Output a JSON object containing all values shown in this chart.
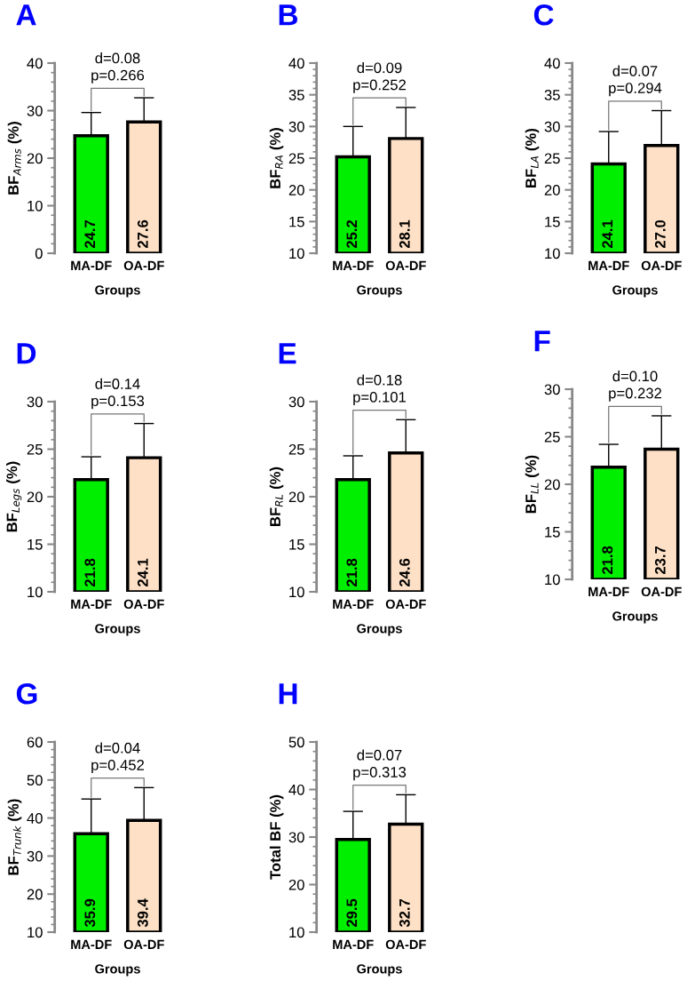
{
  "chart_data": [
    {
      "type": "bar",
      "title": "A",
      "ylabel": "BF$_{Arms}$ (%)",
      "xlabel": "Groups",
      "categories": [
        "MA-DF",
        "OA-DF"
      ],
      "values": [
        24.7,
        27.6
      ],
      "colors": [
        "#00ee00",
        "#fde0c5"
      ],
      "errors": [
        [
          24.7,
          29.6
        ],
        [
          27.6,
          32.7
        ]
      ],
      "data_labels": true,
      "annotations": [
        "d=0.08\np=0.266"
      ],
      "ylim": [
        0,
        40
      ],
      "yticks": [
        0,
        {
          "value": 2,
          "label": null
        },
        {
          "value": 4,
          "label": null
        },
        {
          "value": 6,
          "label": null
        },
        {
          "value": 8,
          "label": null
        },
        10,
        {
          "value": 12,
          "label": null
        },
        {
          "value": 14,
          "label": null
        },
        {
          "value": 16,
          "label": null
        },
        {
          "value": 18,
          "label": null
        },
        20,
        {
          "value": 22,
          "label": null
        },
        {
          "value": 24,
          "label": null
        },
        {
          "value": 26,
          "label": null
        },
        {
          "value": 28,
          "label": null
        },
        30,
        {
          "value": 32,
          "label": null
        },
        {
          "value": 34,
          "label": null
        },
        {
          "value": 36,
          "label": null
        },
        {
          "value": 38,
          "label": null
        },
        40
      ]
    },
    {
      "type": "bar",
      "title": "B",
      "ylabel": "BF$_{RA}$ (%)",
      "xlabel": "Groups",
      "categories": [
        "MA-DF",
        "OA-DF"
      ],
      "values": [
        25.2,
        28.1
      ],
      "colors": [
        "#00ee00",
        "#fde0c5"
      ],
      "errors": [
        [
          25.2,
          30.0
        ],
        [
          28.1,
          33.0
        ]
      ],
      "data_labels": true,
      "annotations": [
        "d=0.09\np=0.252"
      ],
      "ylim": [
        10,
        40
      ],
      "yticks": [
        10,
        {
          "value": 11,
          "label": null
        },
        {
          "value": 12,
          "label": null
        },
        {
          "value": 13,
          "label": null
        },
        {
          "value": 14,
          "label": null
        },
        15,
        {
          "value": 16,
          "label": null
        },
        {
          "value": 17,
          "label": null
        },
        {
          "value": 18,
          "label": null
        },
        {
          "value": 19,
          "label": null
        },
        20,
        {
          "value": 21,
          "label": null
        },
        {
          "value": 22,
          "label": null
        },
        {
          "value": 23,
          "label": null
        },
        {
          "value": 24,
          "label": null
        },
        25,
        {
          "value": 26,
          "label": null
        },
        {
          "value": 27,
          "label": null
        },
        {
          "value": 28,
          "label": null
        },
        {
          "value": 29,
          "label": null
        },
        30,
        {
          "value": 31,
          "label": null
        },
        {
          "value": 32,
          "label": null
        },
        {
          "value": 33,
          "label": null
        },
        {
          "value": 34,
          "label": null
        },
        35,
        {
          "value": 36,
          "label": null
        },
        {
          "value": 37,
          "label": null
        },
        {
          "value": 38,
          "label": null
        },
        {
          "value": 39,
          "label": null
        },
        40
      ]
    },
    {
      "type": "bar",
      "title": "C",
      "ylabel": "BF$_{LA}$ (%)",
      "xlabel": "Groups",
      "categories": [
        "MA-DF",
        "OA-DF"
      ],
      "values": [
        24.1,
        27.0
      ],
      "colors": [
        "#00ee00",
        "#fde0c5"
      ],
      "errors": [
        [
          24.1,
          29.2
        ],
        [
          27.0,
          32.5
        ]
      ],
      "value_labels": [
        "24.1",
        "27.0"
      ],
      "annotations": [
        "d=0.07\np=0.294"
      ],
      "ylim": [
        10,
        40
      ],
      "yticks": [
        10,
        {
          "value": 11,
          "label": null
        },
        {
          "value": 12,
          "label": null
        },
        {
          "value": 13,
          "label": null
        },
        {
          "value": 14,
          "label": null
        },
        15,
        {
          "value": 16,
          "label": null
        },
        {
          "value": 17,
          "label": null
        },
        {
          "value": 18,
          "label": null
        },
        {
          "value": 19,
          "label": null
        },
        20,
        {
          "value": 21,
          "label": null
        },
        {
          "value": 22,
          "label": null
        },
        {
          "value": 23,
          "label": null
        },
        {
          "value": 24,
          "label": null
        },
        25,
        {
          "value": 26,
          "label": null
        },
        {
          "value": 27,
          "label": null
        },
        {
          "value": 28,
          "label": null
        },
        {
          "value": 29,
          "label": null
        },
        30,
        {
          "value": 31,
          "label": null
        },
        {
          "value": 32,
          "label": null
        },
        {
          "value": 33,
          "label": null
        },
        {
          "value": 34,
          "label": null
        },
        35,
        {
          "value": 36,
          "label": null
        },
        {
          "value": 37,
          "label": null
        },
        {
          "value": 38,
          "label": null
        },
        {
          "value": 39,
          "label": null
        },
        40
      ]
    },
    {
      "type": "bar",
      "title": "D",
      "ylabel": "BF$_{Legs}$ (%)",
      "xlabel": "Groups",
      "categories": [
        "MA-DF",
        "OA-DF"
      ],
      "values": [
        21.8,
        24.1
      ],
      "colors": [
        "#00ee00",
        "#fde0c5"
      ],
      "errors": [
        [
          21.8,
          24.2
        ],
        [
          24.1,
          27.7
        ]
      ],
      "data_labels": true,
      "annotations": [
        "d=0.14\np=0.153"
      ],
      "ylim": [
        10,
        30
      ],
      "yticks": [
        10,
        {
          "value": 11,
          "label": null
        },
        {
          "value": 12,
          "label": null
        },
        {
          "value": 13,
          "label": null
        },
        {
          "value": 14,
          "label": null
        },
        15,
        {
          "value": 16,
          "label": null
        },
        {
          "value": 17,
          "label": null
        },
        {
          "value": 18,
          "label": null
        },
        {
          "value": 19,
          "label": null
        },
        20,
        {
          "value": 21,
          "label": null
        },
        {
          "value": 22,
          "label": null
        },
        {
          "value": 23,
          "label": null
        },
        {
          "value": 24,
          "label": null
        },
        25,
        {
          "value": 26,
          "label": null
        },
        {
          "value": 27,
          "label": null
        },
        {
          "value": 28,
          "label": null
        },
        {
          "value": 29,
          "label": null
        },
        30
      ]
    },
    {
      "type": "bar",
      "title": "E",
      "ylabel": "BF$_{RL}$ (%)",
      "xlabel": "Groups",
      "categories": [
        "MA-DF",
        "OA-DF"
      ],
      "values": [
        21.8,
        24.6
      ],
      "colors": [
        "#00ee00",
        "#fde0c5"
      ],
      "errors": [
        [
          21.8,
          24.3
        ],
        [
          24.6,
          28.1
        ]
      ],
      "data_labels": true,
      "annotations": [
        "d=0.18\np=0.101"
      ],
      "ylim": [
        10,
        30
      ],
      "yticks": [
        10,
        {
          "value": 11,
          "label": null
        },
        {
          "value": 12,
          "label": null
        },
        {
          "value": 13,
          "label": null
        },
        {
          "value": 14,
          "label": null
        },
        15,
        {
          "value": 16,
          "label": null
        },
        {
          "value": 17,
          "label": null
        },
        {
          "value": 18,
          "label": null
        },
        {
          "value": 19,
          "label": null
        },
        20,
        {
          "value": 21,
          "label": null
        },
        {
          "value": 22,
          "label": null
        },
        {
          "value": 23,
          "label": null
        },
        {
          "value": 24,
          "label": null
        },
        25,
        {
          "value": 26,
          "label": null
        },
        {
          "value": 27,
          "label": null
        },
        {
          "value": 28,
          "label": null
        },
        {
          "value": 29,
          "label": null
        },
        30
      ]
    },
    {
      "type": "bar",
      "title": "F",
      "ylabel": "BF$_{LL}$ (%)",
      "xlabel": "Groups",
      "categories": [
        "MA-DF",
        "OA-DF"
      ],
      "values": [
        21.8,
        23.7
      ],
      "colors": [
        "#00ee00",
        "#fde0c5"
      ],
      "errors": [
        [
          21.8,
          24.2
        ],
        [
          23.7,
          27.2
        ]
      ],
      "data_labels": true,
      "annotations": [
        "d=0.10\np=0.232"
      ],
      "ylim": [
        10,
        30
      ],
      "yticks": [
        10,
        {
          "value": 11,
          "label": null
        },
        {
          "value": 12,
          "label": null
        },
        {
          "value": 13,
          "label": null
        },
        {
          "value": 14,
          "label": null
        },
        15,
        {
          "value": 16,
          "label": null
        },
        {
          "value": 17,
          "label": null
        },
        {
          "value": 18,
          "label": null
        },
        {
          "value": 19,
          "label": null
        },
        20,
        {
          "value": 21,
          "label": null
        },
        {
          "value": 22,
          "label": null
        },
        {
          "value": 23,
          "label": null
        },
        {
          "value": 24,
          "label": null
        },
        25,
        {
          "value": 26,
          "label": null
        },
        {
          "value": 27,
          "label": null
        },
        {
          "value": 28,
          "label": null
        },
        {
          "value": 29,
          "label": null
        },
        30
      ]
    },
    {
      "type": "bar",
      "title": "G",
      "ylabel": "BF$_{Trunk}$ (%)",
      "xlabel": "Groups",
      "categories": [
        "MA-DF",
        "OA-DF"
      ],
      "values": [
        35.9,
        39.4
      ],
      "colors": [
        "#00ee00",
        "#fde0c5"
      ],
      "errors": [
        [
          35.9,
          45.0
        ],
        [
          39.4,
          48.0
        ]
      ],
      "data_labels": true,
      "annotations": [
        "d=0.04\np=0.452"
      ],
      "ylim": [
        10,
        60
      ],
      "yticks": [
        10,
        {
          "value": 12,
          "label": null
        },
        {
          "value": 14,
          "label": null
        },
        {
          "value": 16,
          "label": null
        },
        {
          "value": 18,
          "label": null
        },
        20,
        {
          "value": 22,
          "label": null
        },
        {
          "value": 24,
          "label": null
        },
        {
          "value": 26,
          "label": null
        },
        {
          "value": 28,
          "label": null
        },
        30,
        {
          "value": 32,
          "label": null
        },
        {
          "value": 34,
          "label": null
        },
        {
          "value": 36,
          "label": null
        },
        {
          "value": 38,
          "label": null
        },
        40,
        {
          "value": 42,
          "label": null
        },
        {
          "value": 44,
          "label": null
        },
        {
          "value": 46,
          "label": null
        },
        {
          "value": 48,
          "label": null
        },
        50,
        {
          "value": 52,
          "label": null
        },
        {
          "value": 54,
          "label": null
        },
        {
          "value": 56,
          "label": null
        },
        {
          "value": 58,
          "label": null
        },
        60
      ]
    },
    {
      "type": "bar",
      "title": "H",
      "ylabel": "Total BF (%)",
      "xlabel": "Groups",
      "categories": [
        "MA-DF",
        "OA-DF"
      ],
      "values": [
        29.5,
        32.7
      ],
      "colors": [
        "#00ee00",
        "#fde0c5"
      ],
      "errors": [
        [
          29.5,
          35.4
        ],
        [
          32.7,
          38.9
        ]
      ],
      "data_labels": true,
      "annotations": [
        "d=0.07\np=0.313"
      ],
      "ylim": [
        10,
        50
      ],
      "yticks": [
        10,
        {
          "value": 12,
          "label": null
        },
        {
          "value": 14,
          "label": null
        },
        {
          "value": 16,
          "label": null
        },
        {
          "value": 18,
          "label": null
        },
        20,
        {
          "value": 22,
          "label": null
        },
        {
          "value": 24,
          "label": null
        },
        {
          "value": 26,
          "label": null
        },
        {
          "value": 28,
          "label": null
        },
        30,
        {
          "value": 32,
          "label": null
        },
        {
          "value": 34,
          "label": null
        },
        {
          "value": 36,
          "label": null
        },
        {
          "value": 38,
          "label": null
        },
        40,
        {
          "value": 42,
          "label": null
        },
        {
          "value": 44,
          "label": null
        },
        {
          "value": 46,
          "label": null
        },
        {
          "value": 48,
          "label": null
        },
        50
      ]
    }
  ]
}
